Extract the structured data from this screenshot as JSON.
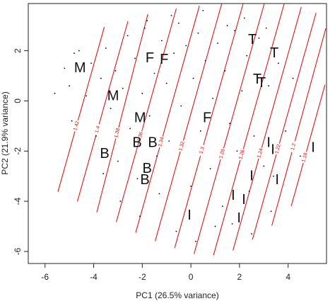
{
  "chart_data": {
    "type": "scatter",
    "x_label": "PC1 (26.5% variance)",
    "y_label": "PC2 (21.9% variance)",
    "xlim": [
      -6.69,
      5.58
    ],
    "ylim": [
      -6.48,
      3.88
    ],
    "xticks": [
      -6,
      -4,
      -2,
      0,
      2,
      4
    ],
    "yticks": [
      -6,
      -4,
      -2,
      0,
      2
    ],
    "points": {
      "color": "#000000",
      "x": [
        -5.2,
        -5.0,
        -4.8,
        -4.9,
        -4.3,
        -4.1,
        -3.9,
        -3.7,
        -3.5,
        -3.3,
        -3.1,
        -3.0,
        -2.8,
        -2.6,
        -2.5,
        -2.3,
        -2.2,
        -2.0,
        -1.9,
        -1.7,
        -1.5,
        -1.4,
        -1.2,
        -1.0,
        -0.9,
        -0.7,
        -0.5,
        -0.4,
        -0.2,
        0.0,
        0.1,
        0.3,
        0.4,
        0.6,
        0.8,
        0.9,
        1.1,
        1.3,
        1.4,
        1.6,
        1.8,
        1.9,
        2.1,
        2.3,
        2.4,
        2.6,
        2.8,
        3.0,
        3.2,
        3.4,
        3.6,
        3.9,
        -4.6,
        -3.6,
        -2.9,
        -2.1,
        -1.3,
        -0.6,
        0.2,
        1.0,
        1.7,
        2.5,
        3.3,
        -1.8,
        -0.8,
        0.5,
        1.5,
        2.2,
        3.1,
        -5.6,
        4.5,
        4.2
      ],
      "y": [
        1.3,
        0.6,
        1.9,
        -0.8,
        0.2,
        1.5,
        -1.4,
        0.9,
        2.1,
        -0.3,
        1.2,
        -2.4,
        0.5,
        2.6,
        -1.1,
        1.7,
        -3.1,
        0.3,
        2.9,
        -0.6,
        1.1,
        -2.2,
        2.4,
        0.7,
        -1.6,
        1.9,
        3.1,
        -0.2,
        2.2,
        -3.4,
        0.9,
        2.7,
        -1.2,
        1.6,
        -2.7,
        0.1,
        2.3,
        -4.2,
        1.2,
        -0.9,
        2.8,
        -2.0,
        0.4,
        1.8,
        -3.6,
        -1.4,
        2.5,
        -2.6,
        0.6,
        -3.0,
        1.5,
        -1.2,
        2.0,
        -2.9,
        -4.0,
        -4.6,
        -3.7,
        -5.2,
        -5.6,
        -5.0,
        -4.9,
        -5.3,
        -4.4,
        3.2,
        3.4,
        3.6,
        3.0,
        3.3,
        2.9,
        0.3,
        -2.2,
        0.9
      ]
    },
    "labels": {
      "text": [
        "M",
        "M",
        "M",
        "B",
        "B",
        "B",
        "B",
        "B",
        "F",
        "F",
        "F",
        "T",
        "T",
        "T",
        "T",
        "I",
        "I",
        "I",
        "I",
        "I",
        "I",
        "I",
        "I",
        "I"
      ],
      "x": [
        -4.56,
        -3.2,
        -2.09,
        -3.55,
        -2.21,
        -1.57,
        -1.8,
        -1.89,
        -1.69,
        -1.1,
        0.67,
        2.53,
        3.43,
        2.73,
        2.91,
        3.2,
        3.37,
        5.03,
        2.5,
        3.55,
        1.74,
        2.18,
        1.98,
        -0.06
      ],
      "y": [
        1.29,
        0.17,
        -0.7,
        -2.13,
        -1.69,
        -1.69,
        -2.72,
        -3.17,
        1.69,
        1.63,
        -0.7,
        2.42,
        1.88,
        0.84,
        0.7,
        -1.69,
        -1.97,
        -1.88,
        -3.01,
        -3.17,
        -3.79,
        -3.96,
        -4.69,
        -4.58
      ]
    },
    "contour_color": "#e00000",
    "contours": [
      {
        "level": 1.42,
        "x": [
          -5.47,
          -3.56
        ],
        "y": [
          -3.62,
          2.95
        ]
      },
      {
        "level": 1.4,
        "x": [
          -4.67,
          -2.59
        ],
        "y": [
          -4.01,
          3.17
        ]
      },
      {
        "level": 1.38,
        "x": [
          -3.87,
          -1.77
        ],
        "y": [
          -4.44,
          3.46
        ]
      },
      {
        "level": 1.36,
        "x": [
          -3.07,
          -0.6
        ],
        "y": [
          -4.83,
          3.68
        ]
      },
      {
        "level": 1.34,
        "x": [
          -2.27,
          0.35
        ],
        "y": [
          -5.25,
          3.79
        ]
      },
      {
        "level": 1.32,
        "x": [
          -1.47,
          1.27
        ],
        "y": [
          -5.59,
          3.88
        ]
      },
      {
        "level": 1.3,
        "x": [
          -0.67,
          2.15
        ],
        "y": [
          -5.87,
          3.88
        ]
      },
      {
        "level": 1.28,
        "x": [
          0.13,
          3.02
        ],
        "y": [
          -6.1,
          3.88
        ]
      },
      {
        "level": 1.26,
        "x": [
          0.93,
          3.84
        ],
        "y": [
          -6.15,
          3.88
        ]
      },
      {
        "level": 1.24,
        "x": [
          1.73,
          4.54
        ],
        "y": [
          -5.96,
          3.74
        ]
      },
      {
        "level": 1.22,
        "x": [
          2.53,
          5.15
        ],
        "y": [
          -5.53,
          3.51
        ]
      },
      {
        "level": 1.2,
        "x": [
          3.33,
          5.55
        ],
        "y": [
          -4.97,
          2.89
        ]
      },
      {
        "level": 1.18,
        "x": [
          4.13,
          5.52
        ],
        "y": [
          -4.19,
          0.65
        ]
      }
    ]
  }
}
